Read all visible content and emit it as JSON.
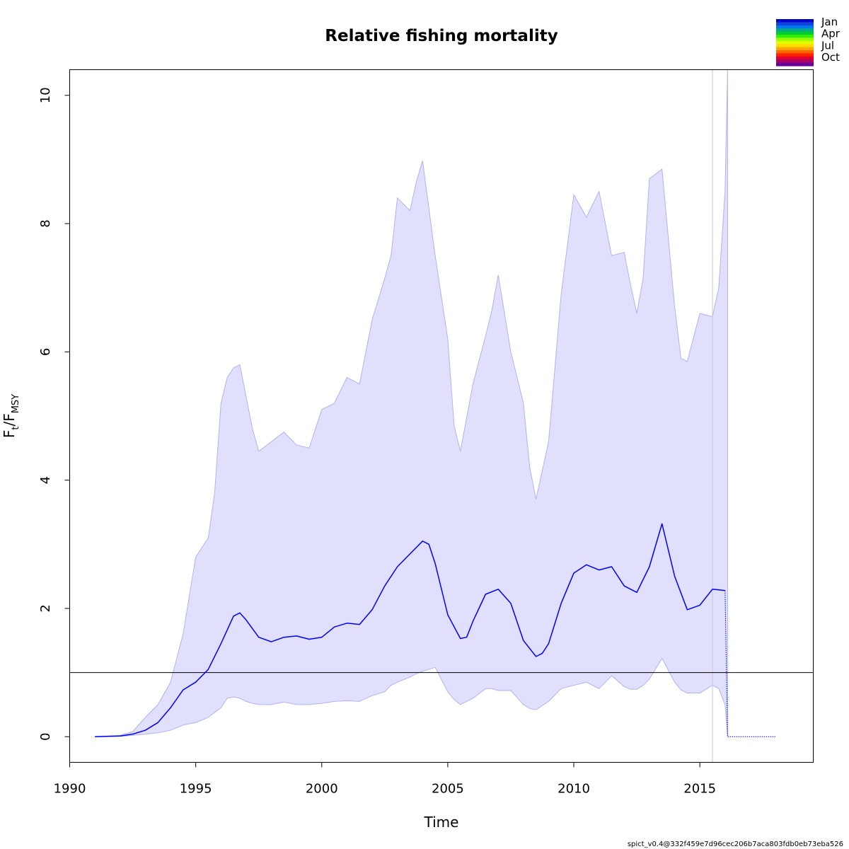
{
  "chart_data": {
    "type": "line",
    "title": "Relative fishing mortality",
    "xlabel": "Time",
    "ylabel_main": "F",
    "ylabel_sub1": "t",
    "ylabel_sep": "/F",
    "ylabel_sub2": "MSY",
    "xlim": [
      1990,
      2019.5
    ],
    "ylim": [
      -0.4,
      10.4
    ],
    "xticks": [
      1990,
      1995,
      2000,
      2005,
      2010,
      2015
    ],
    "yticks": [
      0,
      2,
      4,
      6,
      8,
      10
    ],
    "grid": false,
    "reference_line": 1,
    "vertical_line": 2015.5,
    "colors": {
      "line": "#0000ff",
      "band_fill": "#e0e0fc",
      "band_edge": "#b2b2f2",
      "ref_line": "#000000",
      "vline": "#c8c8c8"
    },
    "series": [
      {
        "x": [
          1991.0,
          1992.0,
          1992.5,
          1993.0,
          1993.5,
          1994.0,
          1994.5,
          1995.0,
          1995.5,
          1996.0,
          1996.5,
          1996.75,
          1997.0,
          1997.5,
          1998.0,
          1998.5,
          1999.0,
          1999.5,
          2000.0,
          2000.5,
          2001.0,
          2001.5,
          2002.0,
          2002.5,
          2003.0,
          2003.5,
          2004.0,
          2004.25,
          2004.5,
          2005.0,
          2005.5,
          2005.75,
          2006.0,
          2006.5,
          2007.0,
          2007.5,
          2008.0,
          2008.5,
          2008.75,
          2009.0,
          2009.5,
          2010.0,
          2010.5,
          2011.0,
          2011.5,
          2012.0,
          2012.5,
          2013.0,
          2013.5,
          2014.0,
          2014.5,
          2015.0,
          2015.5,
          2016.0
        ],
        "values": [
          0.0,
          0.01,
          0.04,
          0.1,
          0.22,
          0.45,
          0.73,
          0.85,
          1.05,
          1.45,
          1.88,
          1.93,
          1.82,
          1.55,
          1.48,
          1.55,
          1.57,
          1.52,
          1.55,
          1.71,
          1.77,
          1.75,
          1.98,
          2.35,
          2.65,
          2.85,
          3.05,
          3.0,
          2.7,
          1.9,
          1.53,
          1.55,
          1.8,
          2.22,
          2.3,
          2.08,
          1.5,
          1.25,
          1.3,
          1.45,
          2.08,
          2.55,
          2.68,
          2.6,
          2.65,
          2.35,
          2.25,
          2.65,
          3.32,
          2.5,
          1.98,
          2.05,
          2.3,
          2.28
        ]
      }
    ],
    "ci": {
      "x": [
        1991.0,
        1992.0,
        1992.5,
        1993.0,
        1993.5,
        1994.0,
        1994.5,
        1995.0,
        1995.5,
        1995.75,
        1996.0,
        1996.25,
        1996.5,
        1996.75,
        1997.0,
        1997.25,
        1997.5,
        1998.0,
        1998.5,
        1999.0,
        1999.5,
        2000.0,
        2000.5,
        2001.0,
        2001.5,
        2002.0,
        2002.5,
        2002.75,
        2003.0,
        2003.5,
        2003.75,
        2004.0,
        2004.5,
        2005.0,
        2005.25,
        2005.5,
        2006.0,
        2006.5,
        2006.75,
        2007.0,
        2007.5,
        2008.0,
        2008.25,
        2008.5,
        2009.0,
        2009.5,
        2010.0,
        2010.5,
        2011.0,
        2011.5,
        2012.0,
        2012.25,
        2012.5,
        2012.75,
        2013.0,
        2013.5,
        2014.0,
        2014.25,
        2014.5,
        2015.0,
        2015.5,
        2015.75,
        2016.0,
        2016.1
      ],
      "upper": [
        0.0,
        0.02,
        0.08,
        0.3,
        0.5,
        0.85,
        1.6,
        2.8,
        3.1,
        3.8,
        5.2,
        5.6,
        5.75,
        5.8,
        5.3,
        4.8,
        4.45,
        4.6,
        4.75,
        4.55,
        4.5,
        5.1,
        5.2,
        5.6,
        5.5,
        6.5,
        7.15,
        7.5,
        8.4,
        8.2,
        8.65,
        8.98,
        7.5,
        6.2,
        4.85,
        4.45,
        5.5,
        6.25,
        6.65,
        7.2,
        6.0,
        5.2,
        4.2,
        3.7,
        4.6,
        6.9,
        8.45,
        8.1,
        8.5,
        7.5,
        7.55,
        7.05,
        6.6,
        7.15,
        8.7,
        8.85,
        6.7,
        5.9,
        5.85,
        6.6,
        6.55,
        7.0,
        8.5,
        10.4
      ],
      "lower": [
        0.0,
        0.005,
        0.02,
        0.04,
        0.06,
        0.1,
        0.18,
        0.22,
        0.3,
        0.38,
        0.45,
        0.6,
        0.62,
        0.6,
        0.55,
        0.52,
        0.5,
        0.5,
        0.54,
        0.5,
        0.5,
        0.52,
        0.55,
        0.56,
        0.55,
        0.64,
        0.7,
        0.8,
        0.85,
        0.93,
        0.98,
        1.02,
        1.08,
        0.7,
        0.58,
        0.5,
        0.6,
        0.75,
        0.75,
        0.72,
        0.72,
        0.5,
        0.44,
        0.42,
        0.55,
        0.75,
        0.8,
        0.85,
        0.75,
        0.95,
        0.78,
        0.74,
        0.74,
        0.8,
        0.9,
        1.22,
        0.85,
        0.73,
        0.68,
        0.68,
        0.8,
        0.75,
        0.5,
        0.0
      ]
    },
    "forecast": {
      "x": [
        2016.1,
        2018.0
      ],
      "values": [
        0.0,
        0.0
      ]
    },
    "legend": {
      "placement": "top-right",
      "labels": [
        "Jan",
        "Apr",
        "Jul",
        "Oct"
      ],
      "colors": [
        "#0000cc",
        "#1144dd",
        "#0077ee",
        "#00aa88",
        "#00cc33",
        "#33ee00",
        "#99ff00",
        "#ddff00",
        "#ffdd00",
        "#ffaa00",
        "#ff6600",
        "#ff2200",
        "#dd0033",
        "#aa0066",
        "#660099"
      ]
    },
    "footer": "spict_v0.4@332f459e7d96cec206b7aca803fdb0eb73eba526"
  }
}
